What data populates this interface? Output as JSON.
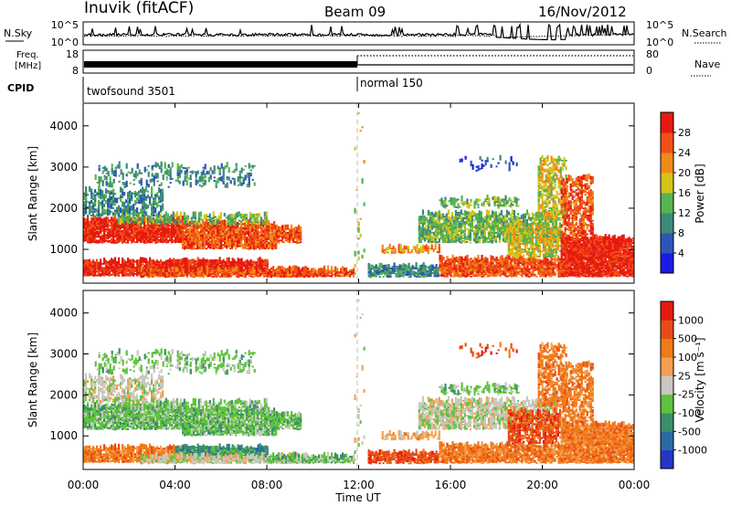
{
  "header": {
    "station": "Inuvik (fitACF)",
    "beam": "Beam 09",
    "date": "16/Nov/2012"
  },
  "top_panels": {
    "nsky_label": "N.Sky",
    "nsky_ticks": [
      "10^5",
      "10^0"
    ],
    "nsearch_label": "N.Search",
    "nsearch_ticks": [
      "10^5",
      "10^0"
    ],
    "freq_label_1": "Freq.",
    "freq_label_2": "[MHz]",
    "freq_ticks": [
      "18",
      "8"
    ],
    "nave_label": "Nave",
    "nave_ticks": [
      "80",
      "0"
    ],
    "cpid_label": "CPID",
    "cpid_segments": [
      {
        "label": "twofsound 3501",
        "start_hour": 0,
        "end_hour": 12
      },
      {
        "label": "normal 150",
        "start_hour": 12,
        "end_hour": 24
      }
    ]
  },
  "x_axis": {
    "label": "Time UT",
    "ticks": [
      "00:00",
      "04:00",
      "08:00",
      "12:00",
      "16:00",
      "20:00",
      "00:00"
    ],
    "tick_hours": [
      0,
      4,
      8,
      12,
      16,
      20,
      24
    ],
    "range_hours": [
      0,
      24
    ]
  },
  "y_axis": {
    "label": "Slant Range [km]",
    "ticks": [
      "1000",
      "2000",
      "3000",
      "4000"
    ],
    "tick_values": [
      1000,
      2000,
      3000,
      4000
    ],
    "range_km": [
      180,
      4550
    ]
  },
  "power_scale": {
    "label": "Power [dB]",
    "ticks": [
      "4",
      "8",
      "12",
      "16",
      "20",
      "24",
      "28"
    ],
    "colors": [
      "#1a1ae6",
      "#2b56b8",
      "#3d8a78",
      "#55b550",
      "#d4c418",
      "#f08a18",
      "#f04f16",
      "#e61a10"
    ]
  },
  "velocity_scale": {
    "label": "Velocity [m s⁻¹]",
    "ticks": [
      "1000",
      "500",
      "100",
      "25",
      "-25",
      "-100",
      "-500",
      "-1000"
    ],
    "colors": [
      "#2236c8",
      "#2a6aa2",
      "#3b8e6a",
      "#5fc23c",
      "#c8c8c0",
      "#f4a050",
      "#f07a18",
      "#e84c14",
      "#e41a10"
    ]
  },
  "chart_data": {
    "type": "heatmap",
    "panels": [
      "power",
      "velocity"
    ],
    "x_unit": "hours UT",
    "y_unit": "km",
    "region_columns": [
      "start_hour",
      "end_hour",
      "min_km",
      "max_km",
      "density",
      "power_level",
      "velocity_level"
    ],
    "power_regions": [
      [
        0.0,
        4.3,
        350,
        700,
        0.9,
        7,
        6
      ],
      [
        0.0,
        4.3,
        1150,
        1700,
        0.9,
        7,
        3
      ],
      [
        4.3,
        8.4,
        1000,
        1600,
        0.85,
        6,
        3
      ],
      [
        8.4,
        9.5,
        1150,
        1500,
        0.8,
        6,
        3
      ],
      [
        1.5,
        8.0,
        1600,
        1800,
        0.55,
        3,
        3
      ],
      [
        0.0,
        3.5,
        1800,
        2400,
        0.5,
        2,
        4
      ],
      [
        0.5,
        7.5,
        2500,
        3000,
        0.22,
        2,
        3
      ],
      [
        4.0,
        8.0,
        400,
        700,
        0.95,
        7,
        2
      ],
      [
        2.5,
        10.0,
        320,
        500,
        0.9,
        6,
        4
      ],
      [
        8.0,
        11.8,
        330,
        500,
        0.85,
        6,
        3
      ],
      [
        11.8,
        12.2,
        200,
        4400,
        0.03,
        4,
        4
      ],
      [
        12.4,
        15.5,
        320,
        560,
        0.8,
        2,
        7
      ],
      [
        13.0,
        15.5,
        900,
        1000,
        0.5,
        5,
        5
      ],
      [
        14.6,
        20.6,
        1150,
        1850,
        0.65,
        3,
        4
      ],
      [
        15.5,
        19.0,
        2000,
        2200,
        0.45,
        3,
        3
      ],
      [
        15.5,
        20.8,
        330,
        740,
        0.85,
        6,
        6
      ],
      [
        16.3,
        19.0,
        2900,
        3200,
        0.15,
        1,
        7
      ],
      [
        18.5,
        20.8,
        800,
        1600,
        0.6,
        4,
        7
      ],
      [
        19.8,
        21.0,
        1700,
        3200,
        0.45,
        4,
        6
      ],
      [
        20.8,
        24.0,
        330,
        1250,
        0.95,
        7,
        6
      ],
      [
        20.8,
        22.2,
        1300,
        2700,
        0.55,
        6,
        6
      ]
    ]
  }
}
